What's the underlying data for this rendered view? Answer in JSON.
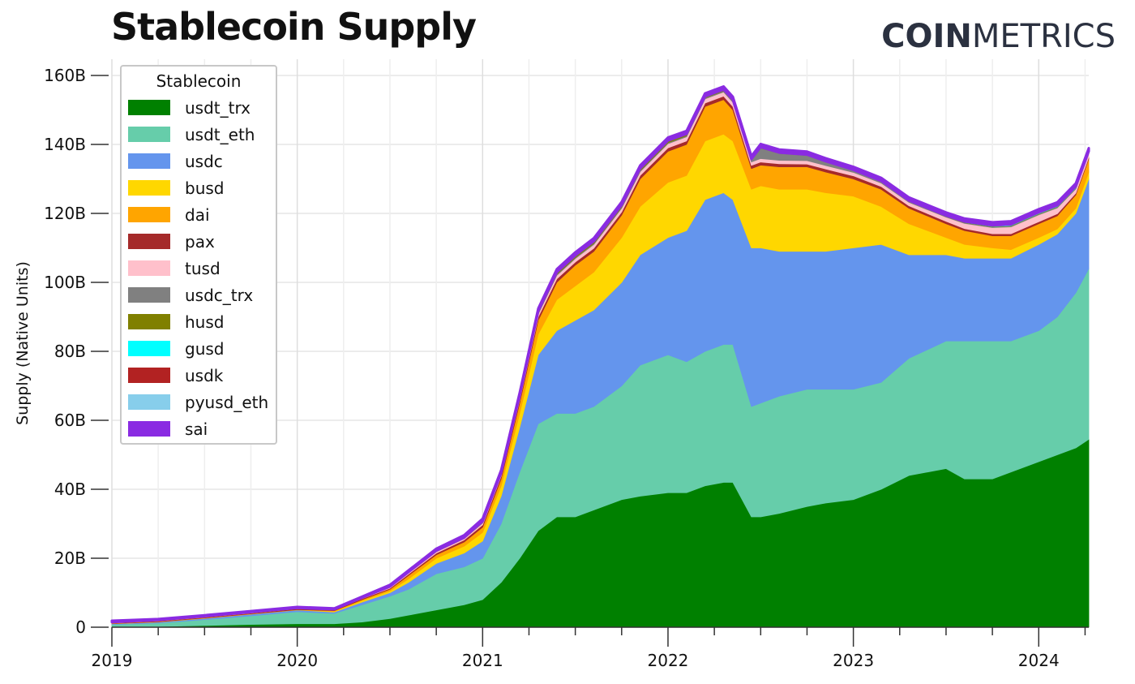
{
  "header": {
    "title": "Stablecoin Supply",
    "brand_bold": "COIN",
    "brand_light": "METRICS"
  },
  "chart_data": {
    "type": "area",
    "stacked": true,
    "title": "Stablecoin Supply",
    "xlabel": "",
    "ylabel": "Supply (Native Units)",
    "ylim": [
      0,
      160
    ],
    "y_unit": "B",
    "yticks": [
      0,
      20,
      40,
      60,
      80,
      100,
      120,
      140,
      160
    ],
    "ytick_labels": [
      "0",
      "20B",
      "40B",
      "60B",
      "80B",
      "100B",
      "120B",
      "140B",
      "160B"
    ],
    "xlim": [
      2019.0,
      2024.27
    ],
    "xticks": [
      2019,
      2020,
      2021,
      2022,
      2023,
      2024
    ],
    "xtick_labels": [
      "2019",
      "2020",
      "2021",
      "2022",
      "2023",
      "2024"
    ],
    "legend_title": "Stablecoin",
    "legend_position": "top-left",
    "grid": true,
    "x": [
      2019.0,
      2019.25,
      2019.5,
      2019.75,
      2020.0,
      2020.2,
      2020.35,
      2020.5,
      2020.6,
      2020.75,
      2020.9,
      2021.0,
      2021.1,
      2021.2,
      2021.3,
      2021.4,
      2021.5,
      2021.6,
      2021.75,
      2021.85,
      2022.0,
      2022.1,
      2022.2,
      2022.3,
      2022.35,
      2022.45,
      2022.5,
      2022.6,
      2022.75,
      2022.85,
      2023.0,
      2023.15,
      2023.3,
      2023.5,
      2023.6,
      2023.75,
      2023.85,
      2024.0,
      2024.1,
      2024.2,
      2024.27
    ],
    "series": [
      {
        "name": "usdt_trx",
        "color": "#008000",
        "values": [
          0.1,
          0.2,
          0.5,
          0.8,
          1,
          1,
          1.5,
          2.5,
          3.5,
          5,
          6.5,
          8,
          13,
          20,
          28,
          32,
          32,
          34,
          37,
          38,
          39,
          39,
          41,
          42,
          42,
          32,
          32,
          33,
          35,
          36,
          37,
          40,
          44,
          46,
          43,
          43,
          45,
          48,
          50,
          52,
          54.5
        ]
      },
      {
        "name": "usdt_eth",
        "color": "#66cdaa",
        "values": [
          0.7,
          1,
          1.7,
          2.5,
          3.5,
          3,
          5,
          6.5,
          7.5,
          10.5,
          11,
          12,
          17,
          25,
          31,
          30,
          30,
          30,
          33,
          38,
          40,
          38,
          39,
          40,
          40,
          32,
          33,
          34,
          34,
          33,
          32,
          31,
          34,
          37,
          40,
          40,
          38,
          38,
          40,
          45,
          49.5
        ]
      },
      {
        "name": "usdc",
        "color": "#6495ed",
        "values": [
          0.2,
          0.3,
          0.4,
          0.5,
          0.5,
          0.4,
          0.8,
          1,
          2,
          3,
          4,
          5,
          8,
          13,
          20,
          24,
          27,
          28,
          30,
          32,
          34,
          38,
          44,
          44,
          42,
          46,
          45,
          42,
          40,
          40,
          41,
          40,
          30,
          25,
          24,
          24,
          24,
          25,
          24,
          23,
          26
        ]
      },
      {
        "name": "busd",
        "color": "#ffd700",
        "values": [
          0,
          0,
          0,
          0,
          0,
          0.2,
          0.4,
          0.5,
          1,
          1.5,
          2,
          2.5,
          3,
          4,
          6,
          9,
          10,
          11,
          13,
          14,
          16,
          16,
          17,
          17,
          17,
          17,
          18,
          18,
          18,
          17,
          15,
          11,
          9,
          5,
          4,
          3,
          2.5,
          2,
          1.5,
          1.5,
          2
        ]
      },
      {
        "name": "dai",
        "color": "#ffa500",
        "values": [
          0.1,
          0.1,
          0.1,
          0.1,
          0.1,
          0.2,
          0.3,
          0.5,
          1,
          1,
          1.2,
          1.5,
          2,
          3,
          4,
          5,
          6,
          6,
          6.5,
          8,
          9,
          9,
          10,
          10,
          9,
          6,
          6,
          6.5,
          6.5,
          6,
          5,
          5,
          4.5,
          4,
          4,
          3.5,
          4,
          4,
          3.8,
          3.9,
          3.8
        ]
      },
      {
        "name": "pax",
        "color": "#a52a2a",
        "values": [
          0.1,
          0.2,
          0.2,
          0.2,
          0.3,
          0.2,
          0.3,
          0.3,
          0.4,
          0.5,
          0.6,
          0.7,
          0.8,
          0.9,
          1,
          1,
          0.9,
          0.9,
          0.9,
          1,
          1,
          1,
          1,
          1,
          1,
          0.9,
          0.9,
          0.9,
          0.8,
          0.9,
          0.9,
          0.8,
          0.7,
          0.7,
          0.6,
          0.6,
          0.6,
          0.6,
          0.6,
          0.5,
          0.5
        ]
      },
      {
        "name": "tusd",
        "color": "#ffc0cb",
        "values": [
          0.2,
          0.2,
          0.2,
          0.2,
          0.1,
          0.1,
          0.2,
          0.3,
          0.4,
          0.4,
          0.4,
          0.5,
          0.5,
          0.6,
          0.8,
          1,
          1,
          1.1,
          1.1,
          1.1,
          1.2,
          1.2,
          1.2,
          1.2,
          1.2,
          1,
          1,
          1,
          1,
          1,
          1,
          1,
          1,
          1.2,
          1.5,
          1.8,
          2,
          2,
          1.7,
          1.2,
          1
        ]
      },
      {
        "name": "usdc_trx",
        "color": "#808080",
        "values": [
          0,
          0,
          0,
          0,
          0,
          0,
          0,
          0,
          0,
          0,
          0,
          0.1,
          0.1,
          0.2,
          0.2,
          0.3,
          0.3,
          0.3,
          0.3,
          0.3,
          0.3,
          0.3,
          0.3,
          0.3,
          0.3,
          0.5,
          3,
          2,
          1.5,
          1,
          0.5,
          0.4,
          0.3,
          0.2,
          0.2,
          0.2,
          0.2,
          0.2,
          0.2,
          0.2,
          0.2
        ]
      },
      {
        "name": "husd",
        "color": "#808000",
        "values": [
          0,
          0,
          0,
          0,
          0,
          0,
          0,
          0.1,
          0.1,
          0.2,
          0.2,
          0.3,
          0.3,
          0.4,
          0.5,
          0.5,
          0.5,
          0.5,
          0.5,
          0.5,
          0.5,
          0.4,
          0.3,
          0.3,
          0.3,
          0.2,
          0.2,
          0.1,
          0.1,
          0.1,
          0.1,
          0.1,
          0.1,
          0.1,
          0.1,
          0.1,
          0.1,
          0.1,
          0.1,
          0.1,
          0.1
        ]
      },
      {
        "name": "gusd",
        "color": "#00ffff",
        "values": [
          0.05,
          0.05,
          0.05,
          0.05,
          0.05,
          0.05,
          0.05,
          0.05,
          0.05,
          0.05,
          0.05,
          0.05,
          0.05,
          0.1,
          0.1,
          0.1,
          0.1,
          0.1,
          0.1,
          0.1,
          0.1,
          0.1,
          0.1,
          0.1,
          0.1,
          0.1,
          0.1,
          0.1,
          0.1,
          0.1,
          0.1,
          0.1,
          0.1,
          0.1,
          0.1,
          0.1,
          0.1,
          0.1,
          0.1,
          0.1,
          0.1
        ]
      },
      {
        "name": "usdk",
        "color": "#b22222",
        "values": [
          0.03,
          0.03,
          0.03,
          0.03,
          0.03,
          0.03,
          0.03,
          0.03,
          0.03,
          0.03,
          0.03,
          0.03,
          0.03,
          0.03,
          0.03,
          0.03,
          0.03,
          0.03,
          0.03,
          0.03,
          0.03,
          0.03,
          0.03,
          0.03,
          0.03,
          0.03,
          0.03,
          0.03,
          0.03,
          0.03,
          0.03,
          0.03,
          0.03,
          0.03,
          0.03,
          0.03,
          0.03,
          0.03,
          0.03,
          0.03,
          0.03
        ]
      },
      {
        "name": "pyusd_eth",
        "color": "#87ceeb",
        "values": [
          0,
          0,
          0,
          0,
          0,
          0,
          0,
          0,
          0,
          0,
          0,
          0,
          0,
          0,
          0,
          0,
          0,
          0,
          0,
          0,
          0,
          0,
          0,
          0,
          0,
          0,
          0,
          0,
          0,
          0,
          0,
          0,
          0,
          0.05,
          0.1,
          0.2,
          0.3,
          0.3,
          0.3,
          0.3,
          0.3
        ]
      },
      {
        "name": "sai",
        "color": "#8a2be2",
        "values": [
          0.4,
          0.3,
          0.3,
          0.3,
          0.3,
          0.3,
          0.3,
          0.5,
          0.5,
          0.6,
          0.7,
          0.8,
          0.8,
          0.8,
          0.8,
          0.9,
          0.9,
          0.9,
          0.9,
          0.9,
          0.9,
          0.9,
          0.9,
          0.9,
          0.9,
          0.9,
          0.9,
          0.9,
          0.9,
          0.9,
          0.9,
          0.9,
          0.9,
          0.9,
          0.9,
          0.9,
          0.9,
          0.9,
          0.9,
          0.9,
          0.9
        ]
      }
    ]
  }
}
